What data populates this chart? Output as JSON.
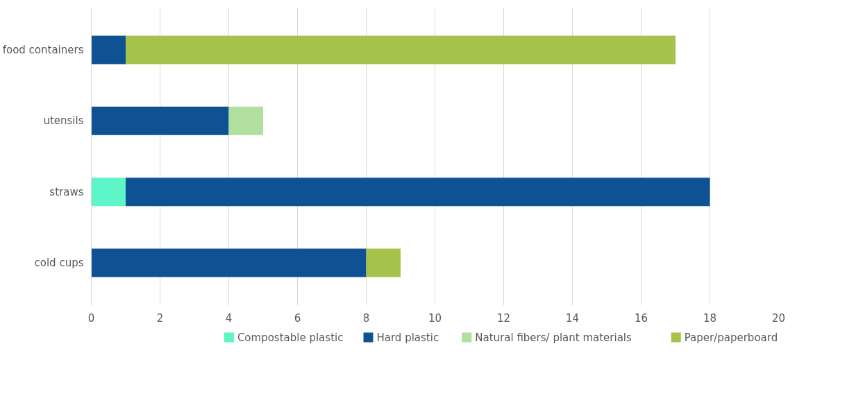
{
  "chart_data": {
    "type": "bar",
    "orientation": "horizontal",
    "stacked": true,
    "categories": [
      "food containers",
      "utensils",
      "straws",
      "cold cups"
    ],
    "series": [
      {
        "name": "Compostable plastic",
        "color": "#5ef5c8",
        "values": [
          0,
          0,
          1,
          0
        ]
      },
      {
        "name": "Hard plastic",
        "color": "#0f5294",
        "values": [
          1,
          4,
          17,
          8
        ]
      },
      {
        "name": "Natural fibers/ plant materials",
        "color": "#b0dfa0",
        "values": [
          0,
          1,
          0,
          0
        ]
      },
      {
        "name": "Paper/paperboard",
        "color": "#a5c24a",
        "values": [
          16,
          0,
          0,
          1
        ]
      }
    ],
    "xlim": [
      0,
      20
    ],
    "xticks": [
      0,
      2,
      4,
      6,
      8,
      10,
      12,
      14,
      16,
      18,
      20
    ],
    "grid": "x",
    "legend": "bottom"
  }
}
